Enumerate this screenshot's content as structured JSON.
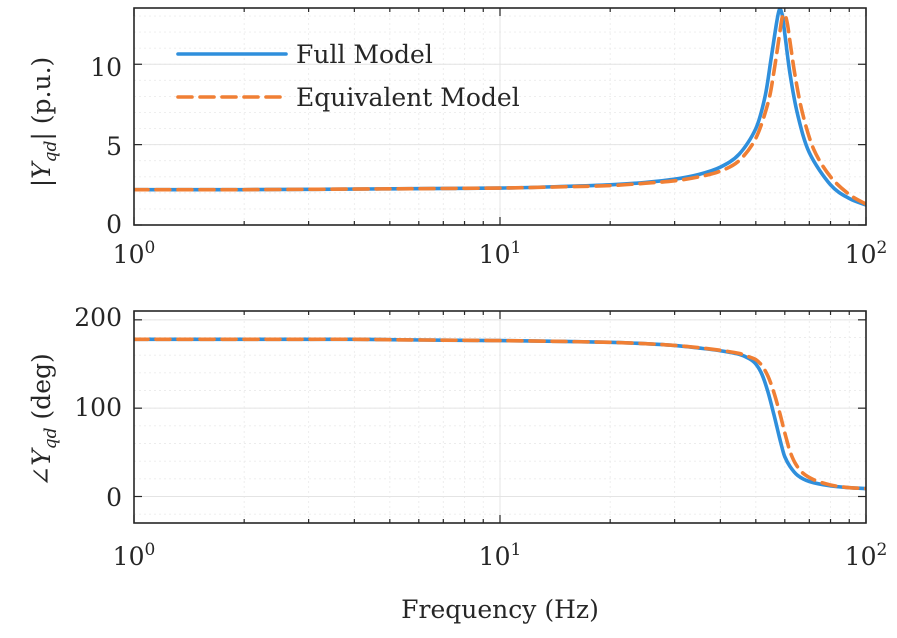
{
  "chart_data": [
    {
      "type": "line",
      "ylabel": {
        "prefix": "|",
        "var": "Y",
        "sub": "qd",
        "suffix": "| (p.u.)"
      },
      "xscale": "log",
      "xlim": [
        1,
        100
      ],
      "ylim": [
        0,
        13.5
      ],
      "yticks": [
        0,
        5,
        10
      ],
      "ytick_labels": [
        "0",
        "5",
        "10"
      ],
      "xtick_labels": [
        {
          "base": "10",
          "exp": "0"
        },
        {
          "base": "10",
          "exp": "1"
        },
        {
          "base": "10",
          "exp": "2"
        }
      ],
      "xticks": [
        1,
        10,
        100
      ],
      "grid": true,
      "legend_position": "top-left",
      "series": [
        {
          "name": "Full Model",
          "color": "#2f8fdc",
          "dash": "solid",
          "x": [
            1,
            2,
            5,
            10,
            15,
            20,
            25,
            30,
            35,
            40,
            45,
            50,
            53,
            55,
            57,
            58,
            59,
            60,
            62,
            65,
            70,
            80,
            90,
            100
          ],
          "y": [
            2.2,
            2.2,
            2.25,
            2.3,
            2.4,
            2.5,
            2.65,
            2.85,
            3.15,
            3.6,
            4.4,
            6.0,
            8.0,
            10.3,
            12.6,
            13.4,
            13.1,
            11.9,
            9.4,
            6.9,
            4.5,
            2.5,
            1.65,
            1.25
          ]
        },
        {
          "name": "Equivalent Model",
          "color": "#f07f34",
          "dash": "dashed",
          "x": [
            1,
            2,
            5,
            10,
            15,
            20,
            25,
            30,
            35,
            40,
            45,
            50,
            54,
            56,
            58,
            59,
            60,
            61,
            62,
            64,
            67,
            72,
            80,
            90,
            100
          ],
          "y": [
            2.2,
            2.2,
            2.25,
            2.3,
            2.38,
            2.45,
            2.6,
            2.75,
            3.0,
            3.35,
            4.0,
            5.4,
            7.6,
            9.5,
            11.8,
            12.9,
            13.1,
            12.5,
            11.4,
            9.3,
            7.0,
            4.7,
            3.0,
            1.9,
            1.3
          ]
        }
      ]
    },
    {
      "type": "line",
      "ylabel": {
        "prefix": "∠",
        "var": "Y",
        "sub": "qd",
        "suffix": " (deg)"
      },
      "xlabel": "Frequency (Hz)",
      "xscale": "log",
      "xlim": [
        1,
        100
      ],
      "ylim": [
        -30,
        210
      ],
      "yticks": [
        0,
        100,
        200
      ],
      "ytick_labels": [
        "0",
        "100",
        "200"
      ],
      "xtick_labels": [
        {
          "base": "10",
          "exp": "0"
        },
        {
          "base": "10",
          "exp": "1"
        },
        {
          "base": "10",
          "exp": "2"
        }
      ],
      "xticks": [
        1,
        10,
        100
      ],
      "grid": true,
      "series": [
        {
          "name": "Full Model",
          "color": "#2f8fdc",
          "dash": "solid",
          "x": [
            1,
            2,
            3,
            4,
            5,
            7,
            10,
            15,
            20,
            25,
            30,
            35,
            40,
            45,
            48,
            50,
            52,
            54,
            56,
            57,
            58,
            59,
            60,
            62,
            65,
            70,
            80,
            90,
            100
          ],
          "y": [
            178,
            178,
            178,
            178,
            177.5,
            177,
            176.5,
            175.5,
            174.5,
            173,
            171,
            168,
            165,
            161,
            156,
            150,
            138,
            118,
            93,
            80,
            67,
            55,
            45,
            34,
            24,
            17,
            12,
            10,
            9
          ]
        },
        {
          "name": "Equivalent Model",
          "color": "#f07f34",
          "dash": "dashed",
          "x": [
            1,
            2,
            3,
            4,
            5,
            7,
            10,
            15,
            20,
            25,
            30,
            35,
            40,
            45,
            48,
            50,
            52,
            54,
            56,
            58,
            59,
            60,
            61,
            62,
            64,
            67,
            72,
            80,
            90,
            100
          ],
          "y": [
            178,
            178,
            178,
            178,
            177.5,
            177,
            176.5,
            175.5,
            174.5,
            173,
            171,
            168.5,
            165.5,
            162,
            158,
            155,
            148,
            136,
            118,
            96,
            84,
            72,
            61,
            51,
            38,
            27,
            19,
            13,
            10,
            9
          ]
        }
      ]
    }
  ]
}
